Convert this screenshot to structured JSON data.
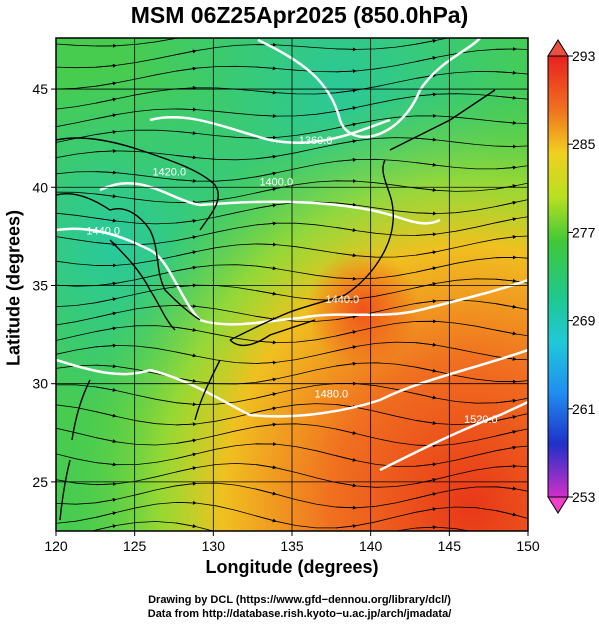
{
  "title": "MSM 06Z25Apr2025 (850.0hPa)",
  "chart_data": {
    "type": "heatmap",
    "title": "MSM 06Z25Apr2025 (850.0hPa)",
    "xlabel": "Longitude (degrees)",
    "ylabel": "Latitude  (degrees)",
    "xlim": [
      120,
      150
    ],
    "ylim": [
      22.5,
      47.6
    ],
    "x_ticks": [
      120,
      125,
      130,
      135,
      140,
      145,
      150
    ],
    "y_ticks": [
      25,
      30,
      35,
      40,
      45
    ],
    "grid": true,
    "colorbar": {
      "min": 253,
      "max": 293,
      "ticks": [
        293,
        285,
        277,
        269,
        261,
        253
      ],
      "colors": [
        "#e23ac4",
        "#2020c8",
        "#2090f0",
        "#20d0d0",
        "#20c040",
        "#a0e020",
        "#f0e020",
        "#f08020",
        "#e02020"
      ]
    },
    "contour_labels": [
      {
        "text": "1360.0",
        "lon": 136.5,
        "lat": 42.2
      },
      {
        "text": "1400.0",
        "lon": 134.0,
        "lat": 40.1
      },
      {
        "text": "1420.0",
        "lon": 127.2,
        "lat": 40.6
      },
      {
        "text": "1440.0",
        "lon": 123.0,
        "lat": 37.6
      },
      {
        "text": "1440.0",
        "lon": 138.2,
        "lat": 34.1
      },
      {
        "text": "1480.0",
        "lon": 137.5,
        "lat": 29.3
      },
      {
        "text": "1520.0",
        "lon": 147.0,
        "lat": 28.0
      }
    ]
  },
  "credits": {
    "line1": "Drawing by DCL (https://www.gfd−dennou.org/library/dcl/)",
    "line2": "Data from http://database.rish.kyoto−u.ac.jp/arch/jmadata/"
  }
}
